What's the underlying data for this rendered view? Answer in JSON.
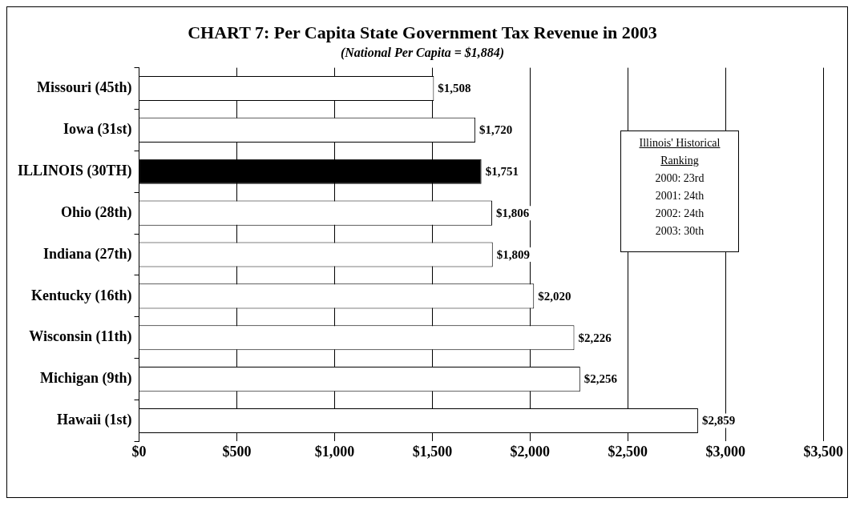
{
  "chart_data": {
    "type": "bar",
    "orientation": "horizontal",
    "title": "CHART 7: Per Capita State Government Tax Revenue in 2003",
    "subtitle": "(National Per Capita = $1,884)",
    "categories": [
      "Missouri (45th)",
      "Iowa (31st)",
      "ILLINOIS (30TH)",
      "Ohio (28th)",
      "Indiana (27th)",
      "Kentucky (16th)",
      "Wisconsin (11th)",
      "Michigan (9th)",
      "Hawaii (1st)"
    ],
    "values": [
      1508,
      1720,
      1751,
      1806,
      1809,
      2020,
      2226,
      2256,
      2859
    ],
    "colors": [
      "#ffffff",
      "#ffffff",
      "#000000",
      "#ffffff",
      "#ffffff",
      "#ffffff",
      "#ffffff",
      "#ffffff",
      "#ffffff"
    ],
    "value_labels": [
      "$1,508",
      "$1,720",
      "$1,751",
      "$1,806",
      "$1,809",
      "$2,020",
      "$2,226",
      "$2,256",
      "$2,859"
    ],
    "xlim": [
      0,
      3500
    ],
    "xticks": [
      {
        "value": 0,
        "label": "$0"
      },
      {
        "value": 500,
        "label": "$500"
      },
      {
        "value": 1000,
        "label": "$1,000"
      },
      {
        "value": 1500,
        "label": "$1,500"
      },
      {
        "value": 2000,
        "label": "$2,000"
      },
      {
        "value": 2500,
        "label": "$2,500"
      },
      {
        "value": 3000,
        "label": "$3,000"
      },
      {
        "value": 3500,
        "label": "$3,500"
      }
    ],
    "grid": "x",
    "legend": false,
    "annotations": [
      "Illinois' Historical Ranking",
      "2000: 23rd",
      "2001: 24th",
      "2002: 24th",
      "2003: 30th"
    ]
  }
}
